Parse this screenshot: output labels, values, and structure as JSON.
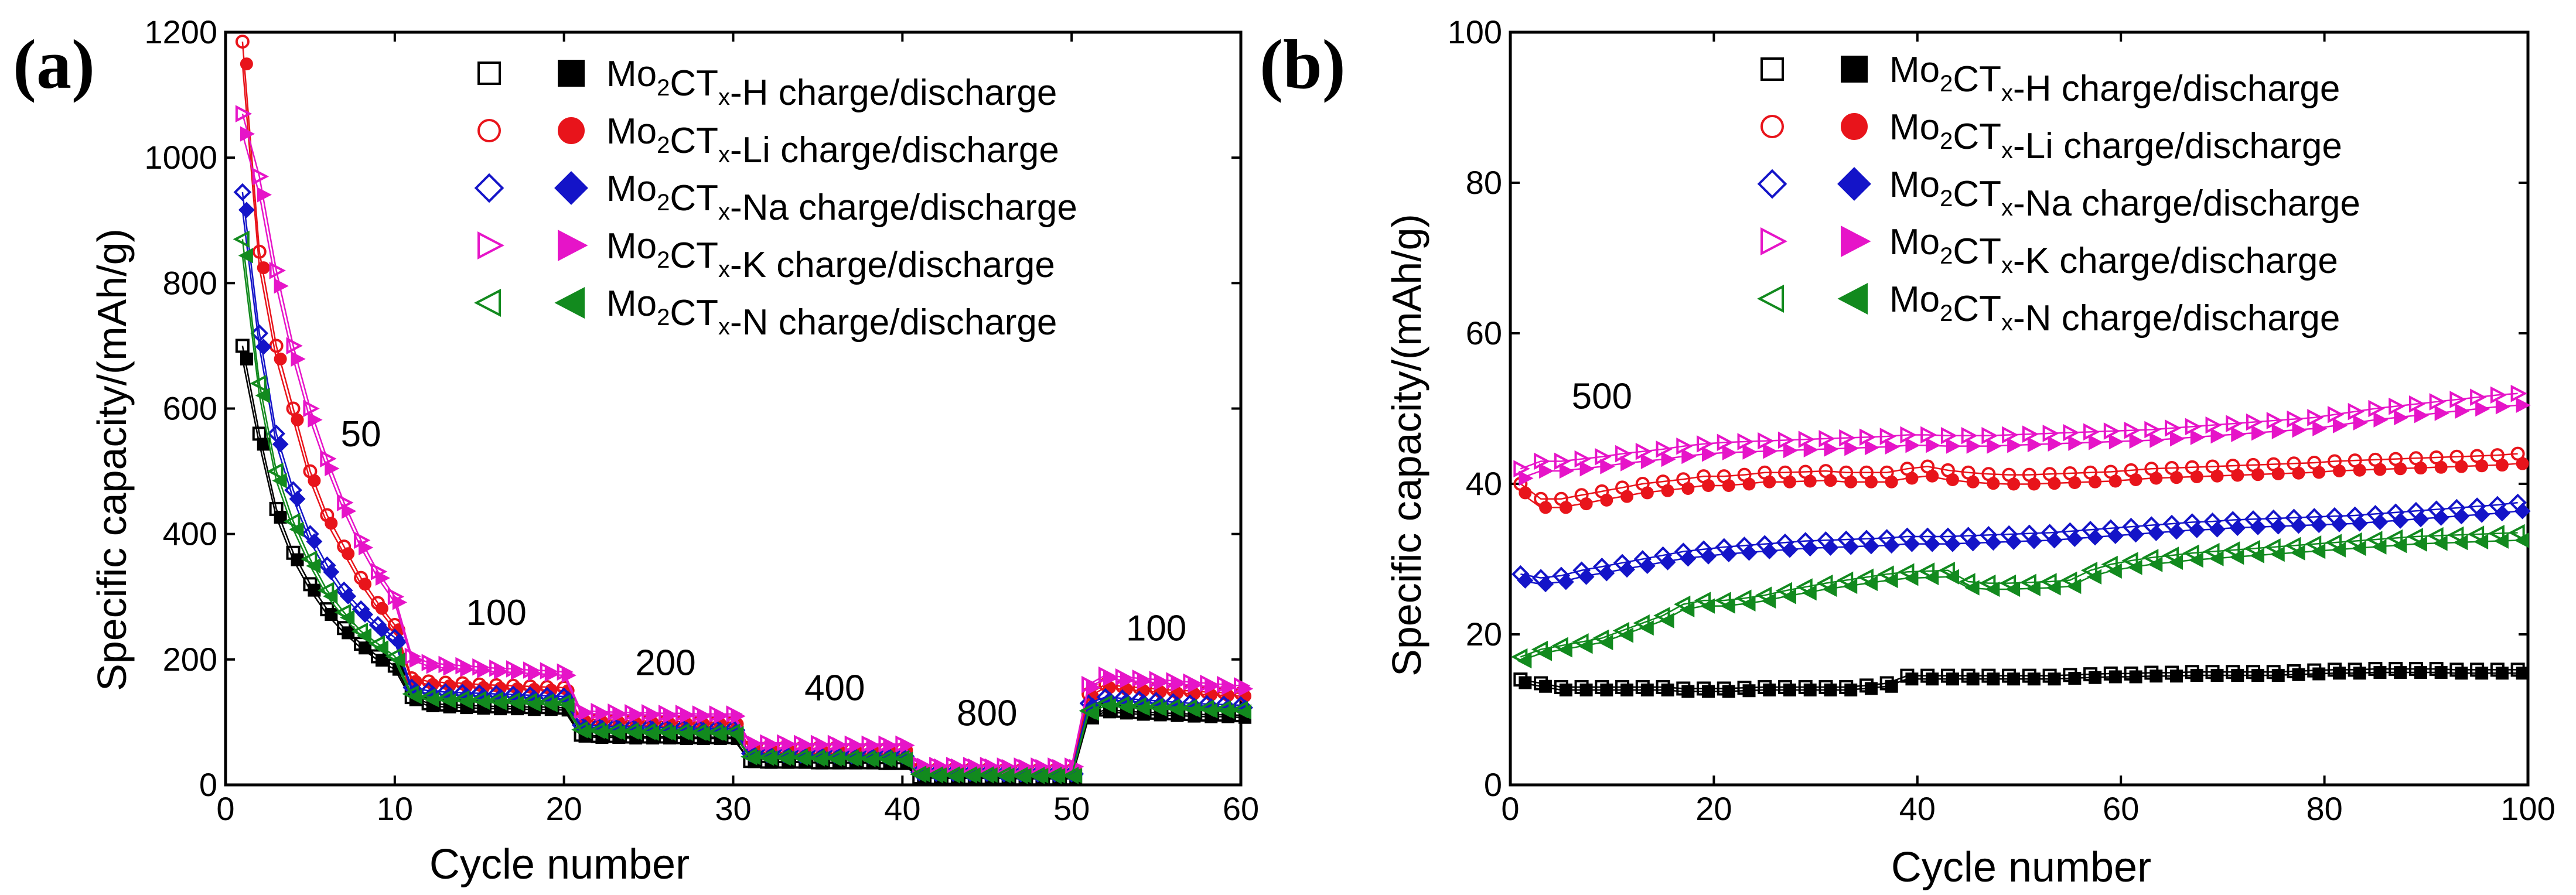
{
  "panel_a_label": "(a)",
  "panel_b_label": "(b)",
  "chart_data": [
    {
      "type": "scatter",
      "panel": "(a)",
      "xlabel": "Cycle number",
      "ylabel": "Specific capacity/(mAh/g)",
      "xlim": [
        0,
        60
      ],
      "ylim": [
        0,
        1200
      ],
      "xticks": [
        0,
        10,
        20,
        30,
        40,
        50,
        60
      ],
      "yticks": [
        0,
        200,
        400,
        600,
        800,
        1000,
        1200
      ],
      "annotations": [
        {
          "text": "50",
          "x": 8,
          "y": 540
        },
        {
          "text": "100",
          "x": 16,
          "y": 255
        },
        {
          "text": "200",
          "x": 26,
          "y": 175
        },
        {
          "text": "400",
          "x": 36,
          "y": 135
        },
        {
          "text": "800",
          "x": 45,
          "y": 95
        },
        {
          "text": "100",
          "x": 55,
          "y": 230
        }
      ],
      "legend": [
        {
          "prefix": "Mo",
          "sub1": "2",
          "mid": "CT",
          "sub2": "x",
          "suffix": "-H charge/discharge",
          "color": "#000000",
          "marker": "square"
        },
        {
          "prefix": "Mo",
          "sub1": "2",
          "mid": "CT",
          "sub2": "x",
          "suffix": "-Li charge/discharge",
          "color": "#e8141b",
          "marker": "circle"
        },
        {
          "prefix": "Mo",
          "sub1": "2",
          "mid": "CT",
          "sub2": "x",
          "suffix": "-Na charge/discharge",
          "color": "#1414c8",
          "marker": "diamond"
        },
        {
          "prefix": "Mo",
          "sub1": "2",
          "mid": "CT",
          "sub2": "x",
          "suffix": "-K charge/discharge",
          "color": "#e614c8",
          "marker": "triangle-right"
        },
        {
          "prefix": "Mo",
          "sub1": "2",
          "mid": "CT",
          "sub2": "x",
          "suffix": "-N charge/discharge",
          "color": "#128a1e",
          "marker": "triangle-left"
        }
      ],
      "x": [
        1,
        2,
        3,
        4,
        5,
        6,
        7,
        8,
        9,
        10,
        11,
        12,
        13,
        14,
        15,
        16,
        17,
        18,
        19,
        20,
        21,
        22,
        23,
        24,
        25,
        26,
        27,
        28,
        29,
        30,
        31,
        32,
        33,
        34,
        35,
        36,
        37,
        38,
        39,
        40,
        41,
        42,
        43,
        44,
        45,
        46,
        47,
        48,
        49,
        50,
        51,
        52,
        53,
        54,
        55,
        56,
        57,
        58,
        59,
        60
      ],
      "series": [
        {
          "name": "Mo2CTx-H charge",
          "values": [
            700,
            560,
            440,
            370,
            320,
            280,
            250,
            225,
            205,
            190,
            140,
            130,
            128,
            127,
            126,
            125,
            125,
            124,
            124,
            123,
            80,
            78,
            78,
            77,
            77,
            77,
            76,
            76,
            76,
            76,
            38,
            37,
            37,
            37,
            36,
            36,
            36,
            36,
            35,
            35,
            12,
            11,
            11,
            11,
            11,
            11,
            10,
            10,
            10,
            10,
            110,
            120,
            118,
            116,
            115,
            114,
            113,
            112,
            112,
            111
          ]
        },
        {
          "name": "Mo2CTx-Li charge",
          "values": [
            1185,
            850,
            700,
            600,
            500,
            430,
            380,
            330,
            290,
            255,
            170,
            165,
            163,
            162,
            160,
            159,
            158,
            157,
            156,
            155,
            105,
            104,
            103,
            102,
            102,
            101,
            101,
            100,
            100,
            100,
            60,
            59,
            59,
            58,
            58,
            58,
            57,
            57,
            57,
            57,
            25,
            24,
            24,
            24,
            24,
            23,
            23,
            23,
            23,
            23,
            145,
            160,
            157,
            155,
            153,
            151,
            150,
            148,
            147,
            146
          ]
        },
        {
          "name": "Mo2CTx-Na charge",
          "values": [
            945,
            720,
            560,
            470,
            400,
            350,
            310,
            280,
            255,
            235,
            155,
            150,
            148,
            147,
            146,
            145,
            144,
            143,
            142,
            141,
            95,
            94,
            93,
            92,
            92,
            91,
            91,
            90,
            90,
            90,
            50,
            49,
            49,
            48,
            48,
            48,
            47,
            47,
            47,
            47,
            20,
            19,
            19,
            19,
            19,
            18,
            18,
            18,
            18,
            18,
            130,
            140,
            138,
            136,
            134,
            132,
            130,
            129,
            128,
            127
          ]
        },
        {
          "name": "Mo2CTx-K charge",
          "values": [
            1070,
            970,
            820,
            700,
            600,
            520,
            450,
            390,
            340,
            300,
            205,
            195,
            192,
            190,
            188,
            186,
            185,
            183,
            182,
            180,
            118,
            117,
            116,
            115,
            115,
            114,
            114,
            113,
            113,
            113,
            68,
            67,
            67,
            66,
            66,
            66,
            65,
            65,
            65,
            65,
            32,
            31,
            31,
            31,
            31,
            30,
            30,
            30,
            30,
            30,
            160,
            175,
            172,
            170,
            168,
            166,
            164,
            162,
            160,
            158
          ]
        },
        {
          "name": "Mo2CTx-N charge",
          "values": [
            870,
            640,
            500,
            420,
            360,
            310,
            275,
            245,
            225,
            205,
            145,
            140,
            138,
            137,
            136,
            135,
            134,
            133,
            132,
            131,
            88,
            87,
            86,
            86,
            85,
            85,
            85,
            84,
            84,
            84,
            45,
            44,
            44,
            44,
            43,
            43,
            43,
            42,
            42,
            42,
            17,
            16,
            16,
            16,
            16,
            16,
            15,
            15,
            15,
            15,
            118,
            130,
            128,
            126,
            125,
            124,
            123,
            122,
            121,
            120
          ]
        }
      ]
    },
    {
      "type": "scatter",
      "panel": "(b)",
      "xlabel": "Cycle number",
      "ylabel": "Specific capacity/(mAh/g)",
      "xlim": [
        0,
        100
      ],
      "ylim": [
        0,
        100
      ],
      "xticks": [
        0,
        20,
        40,
        60,
        80,
        100
      ],
      "yticks": [
        0,
        20,
        40,
        60,
        80,
        100
      ],
      "annotations": [
        {
          "text": "500",
          "x": 9,
          "y": 50
        }
      ],
      "legend": [
        {
          "prefix": "Mo",
          "sub1": "2",
          "mid": "CT",
          "sub2": "x",
          "suffix": "-H charge/discharge",
          "color": "#000000",
          "marker": "square"
        },
        {
          "prefix": "Mo",
          "sub1": "2",
          "mid": "CT",
          "sub2": "x",
          "suffix": "-Li charge/discharge",
          "color": "#e8141b",
          "marker": "circle"
        },
        {
          "prefix": "Mo",
          "sub1": "2",
          "mid": "CT",
          "sub2": "x",
          "suffix": "-Na charge/discharge",
          "color": "#1414c8",
          "marker": "diamond"
        },
        {
          "prefix": "Mo",
          "sub1": "2",
          "mid": "CT",
          "sub2": "x",
          "suffix": "-K charge/discharge",
          "color": "#e614c8",
          "marker": "triangle-right"
        },
        {
          "prefix": "Mo",
          "sub1": "2",
          "mid": "CT",
          "sub2": "x",
          "suffix": "-N charge/discharge",
          "color": "#128a1e",
          "marker": "triangle-left"
        }
      ],
      "x": [
        1,
        3,
        5,
        7,
        9,
        11,
        13,
        15,
        17,
        19,
        21,
        23,
        25,
        27,
        29,
        31,
        33,
        35,
        37,
        39,
        41,
        43,
        45,
        47,
        49,
        51,
        53,
        55,
        57,
        59,
        61,
        63,
        65,
        67,
        69,
        71,
        73,
        75,
        77,
        79,
        81,
        83,
        85,
        87,
        89,
        91,
        93,
        95,
        97,
        99
      ],
      "series": [
        {
          "name": "Mo2CTx-H",
          "values": [
            14,
            13.5,
            13,
            13,
            13,
            13,
            13,
            13,
            12.8,
            12.8,
            12.8,
            12.9,
            13,
            13,
            13,
            13,
            13,
            13.2,
            13.5,
            14.5,
            14.5,
            14.5,
            14.5,
            14.5,
            14.5,
            14.5,
            14.5,
            14.6,
            14.7,
            14.8,
            14.8,
            14.9,
            14.9,
            15,
            15,
            15,
            15,
            15,
            15.1,
            15.2,
            15.3,
            15.3,
            15.4,
            15.4,
            15.4,
            15.4,
            15.3,
            15.3,
            15.3,
            15.3
          ]
        },
        {
          "name": "Mo2CTx-Li",
          "values": [
            40,
            38,
            38,
            38.5,
            39,
            39.5,
            40,
            40.3,
            40.6,
            41,
            41,
            41.2,
            41.5,
            41.5,
            41.6,
            41.7,
            41.5,
            41.5,
            41.5,
            42,
            42.3,
            41.8,
            41.5,
            41.3,
            41.2,
            41.2,
            41.3,
            41.4,
            41.5,
            41.6,
            41.8,
            42,
            42.1,
            42.2,
            42.3,
            42.4,
            42.5,
            42.6,
            42.7,
            42.8,
            43,
            43.1,
            43.2,
            43.3,
            43.4,
            43.5,
            43.6,
            43.7,
            43.8,
            44
          ]
        },
        {
          "name": "Mo2CTx-Na",
          "values": [
            28,
            27.5,
            27.8,
            28.5,
            29,
            29.5,
            30,
            30.5,
            31,
            31.3,
            31.6,
            31.8,
            32,
            32.2,
            32.4,
            32.5,
            32.6,
            32.7,
            32.8,
            33,
            33,
            33,
            33.1,
            33.2,
            33.3,
            33.4,
            33.5,
            33.7,
            33.9,
            34.1,
            34.3,
            34.5,
            34.7,
            34.9,
            35,
            35.2,
            35.3,
            35.4,
            35.5,
            35.6,
            35.7,
            35.8,
            36,
            36.2,
            36.4,
            36.6,
            36.8,
            37,
            37.2,
            37.5
          ]
        },
        {
          "name": "Mo2CTx-K",
          "values": [
            42,
            43,
            43,
            43.3,
            43.6,
            44,
            44.3,
            44.6,
            45,
            45.3,
            45.5,
            45.6,
            45.7,
            45.8,
            45.9,
            46,
            46.1,
            46.2,
            46.3,
            46.5,
            46.5,
            46.4,
            46.4,
            46.4,
            46.5,
            46.6,
            46.7,
            46.8,
            46.9,
            47,
            47.1,
            47.2,
            47.4,
            47.6,
            47.8,
            48,
            48.2,
            48.4,
            48.6,
            48.8,
            49.2,
            49.6,
            50,
            50.3,
            50.6,
            50.9,
            51.2,
            51.5,
            51.8,
            52
          ]
        },
        {
          "name": "Mo2CTx-N",
          "values": [
            17,
            18,
            18.5,
            19,
            19.5,
            20.5,
            21.5,
            22.5,
            24,
            24.5,
            24.5,
            24.8,
            25.2,
            25.8,
            26.3,
            26.8,
            27.2,
            27.6,
            28,
            28.3,
            28.4,
            28.5,
            27,
            26.8,
            26.8,
            26.9,
            27,
            27.2,
            28.5,
            29.3,
            29.8,
            30.2,
            30.5,
            30.8,
            31,
            31.2,
            31.4,
            31.6,
            31.8,
            32,
            32.2,
            32.4,
            32.6,
            32.8,
            33,
            33.1,
            33.2,
            33.3,
            33.4,
            33.5
          ]
        }
      ]
    }
  ]
}
